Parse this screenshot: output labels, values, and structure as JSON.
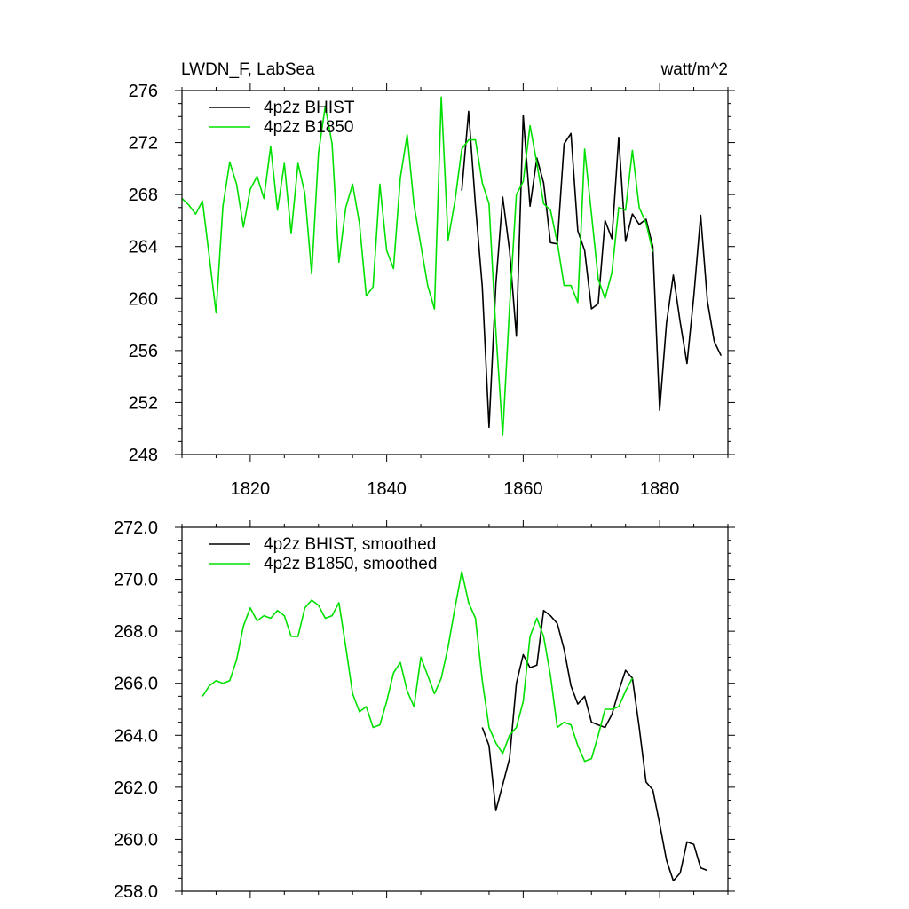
{
  "figure": {
    "title_left": "LWDN_F, LabSea",
    "title_right": "watt/m^2"
  },
  "chart_data": [
    {
      "type": "line",
      "panel": "top",
      "xlim": [
        1810,
        1890
      ],
      "ylim": [
        248,
        276
      ],
      "xticks": [
        1820,
        1840,
        1860,
        1880
      ],
      "xtick_labels": [
        "1820",
        "1840",
        "1860",
        "1880"
      ],
      "yticks": [
        248,
        252,
        256,
        260,
        264,
        268,
        272,
        276
      ],
      "ytick_labels": [
        "248",
        "252",
        "256",
        "260",
        "264",
        "268",
        "272",
        "276"
      ],
      "legend_position": "top-left",
      "series": [
        {
          "name": "4p2z BHIST",
          "color": "#000000",
          "x": [
            1851,
            1852,
            1853,
            1854,
            1855,
            1856,
            1857,
            1858,
            1859,
            1860,
            1861,
            1862,
            1863,
            1864,
            1865,
            1866,
            1867,
            1868,
            1869,
            1870,
            1871,
            1872,
            1873,
            1874,
            1875,
            1876,
            1877,
            1878,
            1879,
            1880,
            1881,
            1882,
            1883,
            1884,
            1885,
            1886,
            1887,
            1888,
            1889
          ],
          "values": [
            268.3,
            274.4,
            267.2,
            260.9,
            250.1,
            261.1,
            267.8,
            263.7,
            257.1,
            274.1,
            267.1,
            270.8,
            268.9,
            264.3,
            264.2,
            271.9,
            272.7,
            265.2,
            263.7,
            259.2,
            259.6,
            266.0,
            264.6,
            272.4,
            264.4,
            266.5,
            265.7,
            266.1,
            264.0,
            251.4,
            258.1,
            261.8,
            258.2,
            255.0,
            260.2,
            266.4,
            259.8,
            256.7,
            255.6
          ]
        },
        {
          "name": "4p2z B1850",
          "color": "#00e000",
          "x": [
            1810,
            1811,
            1812,
            1813,
            1814,
            1815,
            1816,
            1817,
            1818,
            1819,
            1820,
            1821,
            1822,
            1823,
            1824,
            1825,
            1826,
            1827,
            1828,
            1829,
            1830,
            1831,
            1832,
            1833,
            1834,
            1835,
            1836,
            1837,
            1838,
            1839,
            1840,
            1841,
            1842,
            1843,
            1844,
            1845,
            1846,
            1847,
            1848,
            1849,
            1850,
            1851,
            1852,
            1853,
            1854,
            1855,
            1856,
            1857,
            1858,
            1859,
            1860,
            1861,
            1862,
            1863,
            1864,
            1865,
            1866,
            1867,
            1868,
            1869,
            1870,
            1871,
            1872,
            1873,
            1874,
            1875,
            1876,
            1877,
            1878,
            1879
          ],
          "values": [
            267.7,
            267.2,
            266.5,
            267.5,
            263.2,
            258.9,
            267.1,
            270.5,
            268.8,
            265.5,
            268.4,
            269.4,
            267.7,
            271.7,
            266.8,
            270.4,
            265.0,
            270.4,
            268.1,
            261.9,
            271.2,
            274.8,
            271.9,
            262.8,
            267.0,
            268.8,
            265.8,
            260.2,
            260.9,
            268.8,
            263.7,
            262.3,
            269.3,
            272.6,
            267.2,
            264.1,
            261.0,
            259.2,
            275.5,
            264.5,
            267.5,
            271.5,
            272.2,
            272.2,
            268.9,
            267.3,
            257.5,
            249.5,
            259.3,
            268.0,
            269.0,
            273.3,
            270.4,
            267.3,
            266.8,
            264.3,
            261.0,
            261.0,
            259.7,
            271.5,
            266.5,
            261.5,
            260.0,
            262.0,
            267.0,
            266.8,
            271.4,
            267.0,
            265.8,
            263.6
          ]
        }
      ]
    },
    {
      "type": "line",
      "panel": "bottom",
      "xlim": [
        1810,
        1890
      ],
      "ylim": [
        258,
        272
      ],
      "xticks": [
        1820,
        1840,
        1860,
        1880
      ],
      "yticks": [
        258,
        260,
        262,
        264,
        266,
        268,
        270,
        272
      ],
      "ytick_labels": [
        "258.0",
        "260.0",
        "262.0",
        "264.0",
        "266.0",
        "268.0",
        "270.0",
        "272.0"
      ],
      "legend_position": "top-left",
      "series": [
        {
          "name": "4p2z BHIST, smoothed",
          "color": "#000000",
          "x": [
            1854,
            1855,
            1856,
            1857,
            1858,
            1859,
            1860,
            1861,
            1862,
            1863,
            1864,
            1865,
            1866,
            1867,
            1868,
            1869,
            1870,
            1871,
            1872,
            1873,
            1874,
            1875,
            1876,
            1877,
            1878,
            1879,
            1880,
            1881,
            1882,
            1883,
            1884,
            1885,
            1886,
            1887
          ],
          "values": [
            264.3,
            263.6,
            261.1,
            262.1,
            263.1,
            266.0,
            267.1,
            266.6,
            266.7,
            268.8,
            268.6,
            268.3,
            267.3,
            265.9,
            265.2,
            265.5,
            264.5,
            264.4,
            264.3,
            264.8,
            265.7,
            266.5,
            266.2,
            264.3,
            262.2,
            261.9,
            260.6,
            259.2,
            258.4,
            258.7,
            259.9,
            259.8,
            258.9,
            258.8
          ]
        },
        {
          "name": "4p2z B1850, smoothed",
          "color": "#00e000",
          "x": [
            1813,
            1814,
            1815,
            1816,
            1817,
            1818,
            1819,
            1820,
            1821,
            1822,
            1823,
            1824,
            1825,
            1826,
            1827,
            1828,
            1829,
            1830,
            1831,
            1832,
            1833,
            1834,
            1835,
            1836,
            1837,
            1838,
            1839,
            1840,
            1841,
            1842,
            1843,
            1844,
            1845,
            1846,
            1847,
            1848,
            1849,
            1850,
            1851,
            1852,
            1853,
            1854,
            1855,
            1856,
            1857,
            1858,
            1859,
            1860,
            1861,
            1862,
            1863,
            1864,
            1865,
            1866,
            1867,
            1868,
            1869,
            1870,
            1871,
            1872,
            1873,
            1874,
            1875,
            1876
          ],
          "values": [
            265.5,
            265.9,
            266.1,
            266.0,
            266.1,
            266.9,
            268.2,
            268.9,
            268.4,
            268.6,
            268.5,
            268.8,
            268.6,
            267.8,
            267.8,
            268.9,
            269.2,
            269.0,
            268.5,
            268.6,
            269.1,
            267.4,
            265.6,
            264.9,
            265.1,
            264.3,
            264.4,
            265.3,
            266.4,
            266.8,
            265.7,
            265.1,
            267.0,
            266.3,
            265.6,
            266.2,
            267.4,
            268.9,
            270.3,
            269.1,
            268.5,
            266.1,
            264.3,
            263.7,
            263.3,
            264.0,
            264.3,
            265.3,
            267.8,
            268.5,
            267.8,
            266.3,
            264.3,
            264.5,
            264.4,
            263.6,
            263.0,
            263.1,
            264.0,
            265.0,
            265.0,
            265.1,
            265.7,
            266.2
          ]
        }
      ]
    }
  ]
}
